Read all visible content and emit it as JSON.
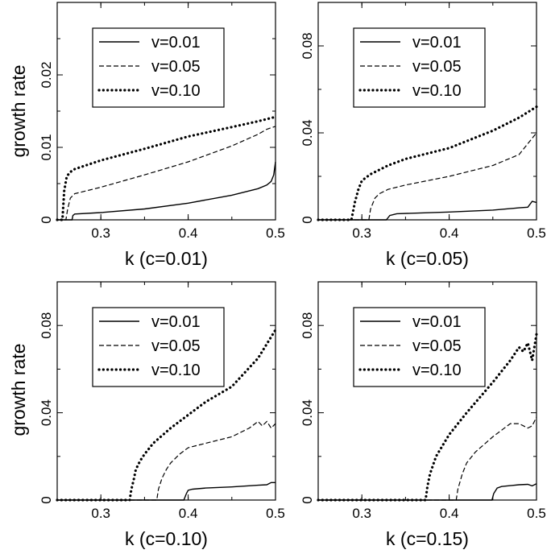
{
  "figure": {
    "ylabel": "growth rate"
  },
  "chart_data": [
    {
      "type": "line",
      "title": "",
      "xlabel": "k (c=0.01)",
      "ylabel": "growth rate",
      "xlim": [
        0.25,
        0.5
      ],
      "ylim": [
        0,
        0.03
      ],
      "xticks": [
        0.3,
        0.4,
        0.5
      ],
      "xtick_labels": [
        "0.3",
        "0.4",
        "0.5"
      ],
      "yticks": [
        0,
        0.01,
        0.02
      ],
      "ytick_labels": [
        "0",
        "0.01",
        "0.02"
      ],
      "legend": [
        "v=0.01",
        "v=0.05",
        "v=0.10"
      ],
      "legend_position": "top-left",
      "series": [
        {
          "name": "v=0.01",
          "style": "solid",
          "x": [
            0.25,
            0.267,
            0.268,
            0.27,
            0.3,
            0.35,
            0.4,
            0.45,
            0.48,
            0.49,
            0.495,
            0.498,
            0.5
          ],
          "y": [
            0,
            0,
            0.0006,
            0.0008,
            0.001,
            0.0015,
            0.0023,
            0.0034,
            0.0043,
            0.0048,
            0.0053,
            0.0062,
            0.008
          ]
        },
        {
          "name": "v=0.05",
          "style": "dashed",
          "x": [
            0.25,
            0.26,
            0.262,
            0.265,
            0.27,
            0.3,
            0.35,
            0.4,
            0.45,
            0.48,
            0.49,
            0.5
          ],
          "y": [
            0,
            0,
            0.0015,
            0.003,
            0.0036,
            0.0045,
            0.0062,
            0.008,
            0.0102,
            0.0118,
            0.0125,
            0.0129
          ]
        },
        {
          "name": "v=0.10",
          "style": "dotted",
          "x": [
            0.25,
            0.256,
            0.258,
            0.261,
            0.265,
            0.27,
            0.3,
            0.35,
            0.4,
            0.45,
            0.48,
            0.5
          ],
          "y": [
            0,
            0,
            0.004,
            0.006,
            0.0066,
            0.007,
            0.0082,
            0.0098,
            0.0115,
            0.0128,
            0.0136,
            0.0142
          ]
        }
      ]
    },
    {
      "type": "line",
      "title": "",
      "xlabel": "k (c=0.05)",
      "ylabel": "",
      "xlim": [
        0.25,
        0.5
      ],
      "ylim": [
        0,
        0.1
      ],
      "xticks": [
        0.3,
        0.4,
        0.5
      ],
      "xtick_labels": [
        "0.3",
        "0.4",
        "0.5"
      ],
      "yticks": [
        0,
        0.04,
        0.08
      ],
      "ytick_labels": [
        "0",
        "0.04",
        "0.08"
      ],
      "legend": [
        "v=0.01",
        "v=0.05",
        "v=0.10"
      ],
      "legend_position": "top-left",
      "series": [
        {
          "name": "v=0.01",
          "style": "solid",
          "x": [
            0.25,
            0.328,
            0.332,
            0.34,
            0.4,
            0.45,
            0.48,
            0.49,
            0.495,
            0.5
          ],
          "y": [
            0,
            0,
            0.002,
            0.0028,
            0.0036,
            0.0045,
            0.0055,
            0.0058,
            0.0085,
            0.008
          ]
        },
        {
          "name": "v=0.05",
          "style": "dashed",
          "x": [
            0.25,
            0.308,
            0.31,
            0.315,
            0.32,
            0.33,
            0.35,
            0.4,
            0.45,
            0.48,
            0.5
          ],
          "y": [
            0,
            0,
            0.005,
            0.01,
            0.012,
            0.014,
            0.016,
            0.02,
            0.025,
            0.03,
            0.04
          ]
        },
        {
          "name": "v=0.10",
          "style": "dotted",
          "x": [
            0.25,
            0.288,
            0.292,
            0.296,
            0.3,
            0.31,
            0.33,
            0.35,
            0.4,
            0.45,
            0.48,
            0.5
          ],
          "y": [
            0,
            0,
            0.008,
            0.014,
            0.018,
            0.021,
            0.025,
            0.028,
            0.033,
            0.041,
            0.047,
            0.052
          ]
        }
      ]
    },
    {
      "type": "line",
      "title": "",
      "xlabel": "k (c=0.10)",
      "ylabel": "growth rate",
      "xlim": [
        0.25,
        0.5
      ],
      "ylim": [
        0,
        0.1
      ],
      "xticks": [
        0.3,
        0.4,
        0.5
      ],
      "xtick_labels": [
        "0.3",
        "0.4",
        "0.5"
      ],
      "yticks": [
        0,
        0.04,
        0.08
      ],
      "ytick_labels": [
        "0",
        "0.04",
        "0.08"
      ],
      "legend": [
        "v=0.01",
        "v=0.05",
        "v=0.10"
      ],
      "legend_position": "top-left",
      "series": [
        {
          "name": "v=0.01",
          "style": "solid",
          "x": [
            0.25,
            0.395,
            0.398,
            0.4,
            0.405,
            0.42,
            0.45,
            0.48,
            0.49,
            0.495,
            0.5
          ],
          "y": [
            0,
            0,
            0.003,
            0.0045,
            0.005,
            0.0055,
            0.006,
            0.0068,
            0.007,
            0.008,
            0.008
          ]
        },
        {
          "name": "v=0.05",
          "style": "dashed",
          "x": [
            0.25,
            0.364,
            0.366,
            0.37,
            0.375,
            0.38,
            0.39,
            0.4,
            0.42,
            0.45,
            0.47,
            0.48,
            0.485,
            0.49,
            0.495,
            0.5
          ],
          "y": [
            0,
            0,
            0.005,
            0.01,
            0.014,
            0.017,
            0.021,
            0.024,
            0.026,
            0.029,
            0.033,
            0.036,
            0.034,
            0.036,
            0.033,
            0.035
          ]
        },
        {
          "name": "v=0.10",
          "style": "dotted",
          "x": [
            0.25,
            0.333,
            0.335,
            0.338,
            0.34,
            0.345,
            0.35,
            0.36,
            0.38,
            0.4,
            0.42,
            0.45,
            0.48,
            0.5
          ],
          "y": [
            0,
            0,
            0.005,
            0.01,
            0.014,
            0.018,
            0.021,
            0.026,
            0.033,
            0.039,
            0.045,
            0.052,
            0.065,
            0.078
          ]
        }
      ]
    },
    {
      "type": "line",
      "title": "",
      "xlabel": "k (c=0.15)",
      "ylabel": "",
      "xlim": [
        0.25,
        0.5
      ],
      "ylim": [
        0,
        0.1
      ],
      "xticks": [
        0.3,
        0.4,
        0.5
      ],
      "xtick_labels": [
        "0.3",
        "0.4",
        "0.5"
      ],
      "yticks": [
        0,
        0.04,
        0.08
      ],
      "ytick_labels": [
        "0",
        "0.04",
        "0.08"
      ],
      "legend": [
        "v=0.01",
        "v=0.05",
        "v=0.10"
      ],
      "legend_position": "top-left",
      "series": [
        {
          "name": "v=0.01",
          "style": "solid",
          "x": [
            0.25,
            0.449,
            0.451,
            0.455,
            0.46,
            0.47,
            0.48,
            0.49,
            0.495,
            0.5
          ],
          "y": [
            0,
            0,
            0.003,
            0.0055,
            0.0062,
            0.0066,
            0.007,
            0.0072,
            0.0065,
            0.0075
          ]
        },
        {
          "name": "v=0.05",
          "style": "dashed",
          "x": [
            0.25,
            0.408,
            0.41,
            0.415,
            0.42,
            0.43,
            0.45,
            0.47,
            0.48,
            0.49,
            0.495,
            0.5
          ],
          "y": [
            0,
            0,
            0.005,
            0.012,
            0.017,
            0.022,
            0.029,
            0.035,
            0.035,
            0.033,
            0.034,
            0.038
          ]
        },
        {
          "name": "v=0.10",
          "style": "dotted",
          "x": [
            0.25,
            0.373,
            0.375,
            0.378,
            0.385,
            0.4,
            0.42,
            0.45,
            0.47,
            0.48,
            0.485,
            0.49,
            0.495,
            0.5
          ],
          "y": [
            0,
            0,
            0.006,
            0.012,
            0.02,
            0.03,
            0.04,
            0.054,
            0.064,
            0.07,
            0.068,
            0.072,
            0.064,
            0.076
          ]
        }
      ]
    }
  ]
}
